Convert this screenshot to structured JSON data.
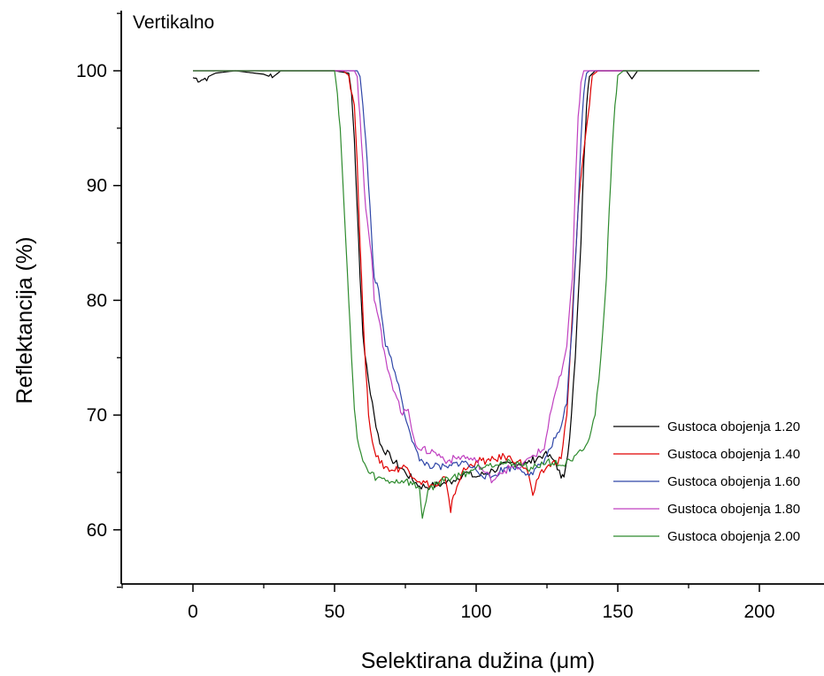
{
  "chart_data": {
    "type": "line",
    "annotation": "Vertikalno",
    "xlabel": "Selektirana dužina (μm)",
    "ylabel": "Reflektancija (%)",
    "xlim": [
      -25,
      222
    ],
    "ylim": [
      55,
      105
    ],
    "x_ticks": [
      0,
      50,
      100,
      150,
      200
    ],
    "y_ticks": [
      60,
      70,
      80,
      90,
      100
    ],
    "grid": false,
    "legend_position": "bottom-right",
    "series": [
      {
        "name": "Gustoca obojenja 1.20",
        "color": "#000000",
        "points": [
          [
            0,
            99.4
          ],
          [
            3,
            99.2
          ],
          [
            8,
            99.8
          ],
          [
            15,
            100
          ],
          [
            25,
            99.7
          ],
          [
            28,
            99.4
          ],
          [
            31,
            100
          ],
          [
            50,
            100
          ],
          [
            55,
            99.8
          ],
          [
            56,
            98
          ],
          [
            57,
            94
          ],
          [
            58,
            88
          ],
          [
            59,
            82
          ],
          [
            60,
            77
          ],
          [
            62,
            73
          ],
          [
            64,
            70
          ],
          [
            66,
            67.5
          ],
          [
            70,
            66.2
          ],
          [
            75,
            65
          ],
          [
            80,
            63.8
          ],
          [
            84,
            63.8
          ],
          [
            88,
            64
          ],
          [
            92,
            64.3
          ],
          [
            96,
            65
          ],
          [
            100,
            64.6
          ],
          [
            106,
            65.2
          ],
          [
            112,
            65.8
          ],
          [
            118,
            65.8
          ],
          [
            124,
            66.6
          ],
          [
            128,
            66
          ],
          [
            130,
            64.5
          ],
          [
            131,
            64.6
          ],
          [
            133,
            68
          ],
          [
            135,
            75
          ],
          [
            137,
            85
          ],
          [
            138,
            92
          ],
          [
            139,
            97
          ],
          [
            140,
            99.5
          ],
          [
            142,
            100
          ],
          [
            153,
            100
          ],
          [
            155,
            99.3
          ],
          [
            157,
            100
          ],
          [
            200,
            100
          ]
        ]
      },
      {
        "name": "Gustoca obojenja 1.40",
        "color": "#e00000",
        "points": [
          [
            0,
            100
          ],
          [
            53,
            100
          ],
          [
            55,
            99.6
          ],
          [
            57,
            97
          ],
          [
            58,
            92
          ],
          [
            59,
            85
          ],
          [
            60,
            79
          ],
          [
            61,
            74
          ],
          [
            62,
            70
          ],
          [
            64,
            67
          ],
          [
            66,
            65.8
          ],
          [
            70,
            65.2
          ],
          [
            75,
            65.5
          ],
          [
            80,
            64.2
          ],
          [
            86,
            63.8
          ],
          [
            89,
            64.6
          ],
          [
            91,
            61.5
          ],
          [
            92,
            63
          ],
          [
            95,
            65
          ],
          [
            100,
            66
          ],
          [
            105,
            66
          ],
          [
            110,
            66.4
          ],
          [
            115,
            66
          ],
          [
            118,
            65.2
          ],
          [
            120,
            63
          ],
          [
            122,
            64.5
          ],
          [
            125,
            65.5
          ],
          [
            130,
            66.2
          ],
          [
            132,
            70
          ],
          [
            134,
            79
          ],
          [
            136,
            88
          ],
          [
            138,
            93
          ],
          [
            140,
            97
          ],
          [
            141,
            99.6
          ],
          [
            143,
            100
          ],
          [
            200,
            100
          ]
        ]
      },
      {
        "name": "Gustoca obojenja 1.60",
        "color": "#2f46a8",
        "points": [
          [
            0,
            100
          ],
          [
            56,
            100
          ],
          [
            58,
            100
          ],
          [
            59,
            99.5
          ],
          [
            60,
            97
          ],
          [
            61,
            94
          ],
          [
            62,
            90
          ],
          [
            63,
            86
          ],
          [
            64,
            82
          ],
          [
            65,
            81.5
          ],
          [
            66,
            80
          ],
          [
            67,
            78
          ],
          [
            68,
            76
          ],
          [
            70,
            75
          ],
          [
            72,
            73
          ],
          [
            74,
            71
          ],
          [
            76,
            69
          ],
          [
            78,
            67.5
          ],
          [
            80,
            66
          ],
          [
            85,
            65.5
          ],
          [
            90,
            65.4
          ],
          [
            95,
            66
          ],
          [
            100,
            65.2
          ],
          [
            105,
            64.5
          ],
          [
            110,
            65.4
          ],
          [
            115,
            65.4
          ],
          [
            120,
            64.8
          ],
          [
            125,
            66.5
          ],
          [
            128,
            68
          ],
          [
            130,
            69
          ],
          [
            132,
            71
          ],
          [
            134,
            78
          ],
          [
            136,
            88
          ],
          [
            137,
            94
          ],
          [
            138,
            98
          ],
          [
            139,
            99.8
          ],
          [
            140,
            100
          ],
          [
            200,
            100
          ]
        ]
      },
      {
        "name": "Gustoca obojenja 1.80",
        "color": "#c040c0",
        "points": [
          [
            0,
            100
          ],
          [
            57,
            100
          ],
          [
            58,
            99.5
          ],
          [
            59,
            96
          ],
          [
            60,
            92
          ],
          [
            61,
            88
          ],
          [
            62,
            86
          ],
          [
            63,
            84
          ],
          [
            64,
            80
          ],
          [
            65,
            79
          ],
          [
            66,
            78
          ],
          [
            67,
            76
          ],
          [
            68,
            75
          ],
          [
            70,
            73
          ],
          [
            72,
            71.5
          ],
          [
            74,
            70
          ],
          [
            76,
            70.5
          ],
          [
            78,
            68
          ],
          [
            80,
            67
          ],
          [
            85,
            66.8
          ],
          [
            90,
            66
          ],
          [
            95,
            66.4
          ],
          [
            100,
            66
          ],
          [
            103,
            65
          ],
          [
            106,
            64.3
          ],
          [
            108,
            65
          ],
          [
            112,
            65.4
          ],
          [
            116,
            65.5
          ],
          [
            120,
            66.5
          ],
          [
            124,
            67
          ],
          [
            126,
            70
          ],
          [
            128,
            72
          ],
          [
            130,
            73.5
          ],
          [
            132,
            76
          ],
          [
            134,
            82
          ],
          [
            135,
            90
          ],
          [
            136,
            96
          ],
          [
            137,
            99
          ],
          [
            138,
            100
          ],
          [
            200,
            100
          ]
        ]
      },
      {
        "name": "Gustoca obojenja 2.00",
        "color": "#2e8b2e",
        "points": [
          [
            0,
            100
          ],
          [
            50,
            100
          ],
          [
            51,
            98
          ],
          [
            52,
            95
          ],
          [
            53,
            90
          ],
          [
            54,
            85
          ],
          [
            55,
            80
          ],
          [
            56,
            75
          ],
          [
            57,
            70.5
          ],
          [
            58,
            68
          ],
          [
            60,
            66
          ],
          [
            62,
            65
          ],
          [
            65,
            64.5
          ],
          [
            70,
            64.2
          ],
          [
            75,
            64.3
          ],
          [
            80,
            63.6
          ],
          [
            81,
            61
          ],
          [
            83,
            63.5
          ],
          [
            86,
            64
          ],
          [
            90,
            64.5
          ],
          [
            95,
            64.8
          ],
          [
            100,
            65.4
          ],
          [
            105,
            65.8
          ],
          [
            110,
            65.8
          ],
          [
            115,
            65.8
          ],
          [
            120,
            65.3
          ],
          [
            125,
            66
          ],
          [
            130,
            65.6
          ],
          [
            134,
            66
          ],
          [
            138,
            67
          ],
          [
            140,
            68
          ],
          [
            142,
            70
          ],
          [
            144,
            75
          ],
          [
            146,
            82
          ],
          [
            147,
            88
          ],
          [
            148,
            93
          ],
          [
            149,
            97
          ],
          [
            150,
            99.6
          ],
          [
            152,
            100
          ],
          [
            200,
            100
          ]
        ]
      }
    ]
  }
}
